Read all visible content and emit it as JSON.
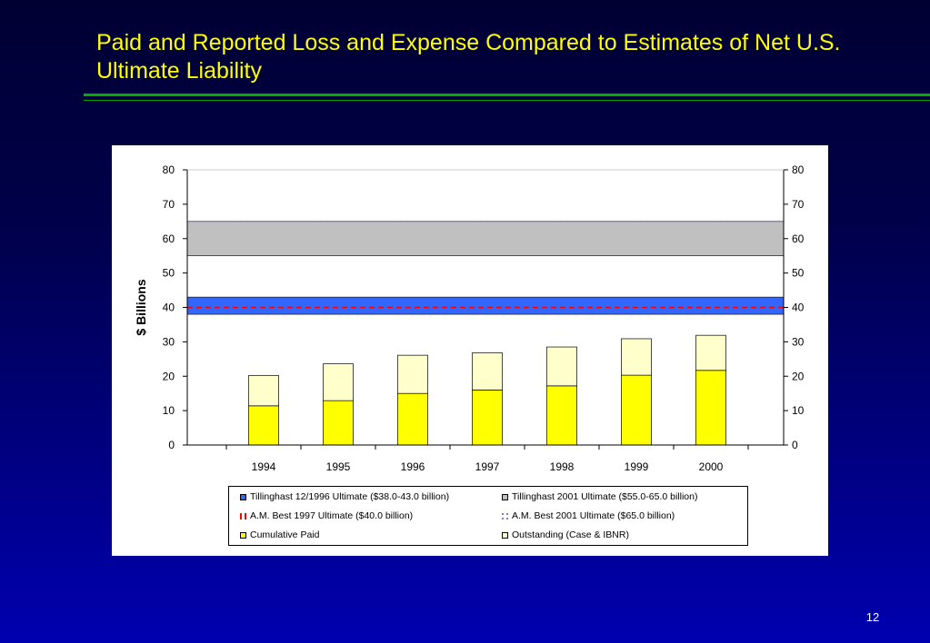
{
  "slide": {
    "title": "Paid and Reported Loss and Expense Compared to Estimates of Net U.S. Ultimate Liability",
    "page_number": "12"
  },
  "colors": {
    "cumulative_paid": "#ffff00",
    "outstanding": "#ffffcc",
    "tillinghast_1996_band": "#3366ff",
    "tillinghast_2001_band": "#c0c0c0",
    "am_best_1997_line": "#ff0000",
    "am_best_2001_line": "#8080c0"
  },
  "chart_data": {
    "type": "bar",
    "stacked": true,
    "ylabel": "$ Billions",
    "ylim": [
      0,
      80
    ],
    "yticks": [
      0,
      10,
      20,
      30,
      40,
      50,
      60,
      70,
      80
    ],
    "secondary_y_axis": true,
    "categories": [
      "1994",
      "1995",
      "1996",
      "1997",
      "1998",
      "1999",
      "2000"
    ],
    "series": [
      {
        "name": "Cumulative Paid",
        "values": [
          11.4,
          12.9,
          15.0,
          16.0,
          17.2,
          20.3,
          21.7
        ]
      },
      {
        "name": "Outstanding (Case & IBNR)",
        "values": [
          8.8,
          10.7,
          11.1,
          10.8,
          11.3,
          10.6,
          10.2
        ]
      }
    ],
    "bands": [
      {
        "name": "Tillinghast 12/1996 Ultimate ($38.0-43.0 billion)",
        "range": [
          38.0,
          43.0
        ]
      },
      {
        "name": "Tillinghast 2001 Ultimate ($55.0-65.0 billion)",
        "range": [
          55.0,
          65.0
        ]
      }
    ],
    "reference_lines": [
      {
        "name": "A.M. Best 1997 Ultimate ($40.0 billion)",
        "value": 40.0
      },
      {
        "name": "A.M. Best 2001 Ultimate ($65.0 billion)",
        "value": 65.0
      }
    ],
    "legend_placement": "bottom",
    "grid": false
  },
  "legend": {
    "items": [
      "Tillinghast 12/1996 Ultimate ($38.0-43.0 billion)",
      "Tillinghast 2001 Ultimate ($55.0-65.0 billion)",
      "A.M. Best 1997 Ultimate ($40.0 billion)",
      "A.M. Best 2001 Ultimate ($65.0 billion)",
      "Cumulative Paid",
      "Outstanding (Case & IBNR)"
    ]
  }
}
